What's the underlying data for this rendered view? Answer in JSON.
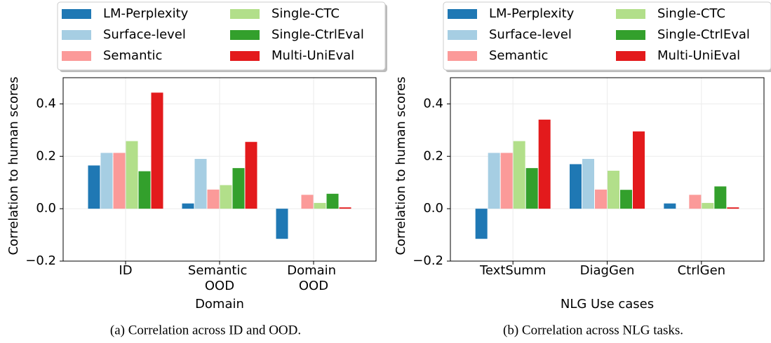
{
  "chart_data": [
    {
      "type": "bar",
      "xlabel": "Domain",
      "ylabel": "Correlation to human scores",
      "caption": "(a) Correlation across ID and OOD.",
      "categories": [
        "ID",
        "Semantic OOD",
        "Domain OOD"
      ],
      "series": [
        {
          "name": "LM-Perplexity",
          "color": "#1f78b4",
          "values": [
            0.165,
            0.02,
            -0.115
          ]
        },
        {
          "name": "Surface-level",
          "color": "#a6cee3",
          "values": [
            0.213,
            0.19,
            0
          ]
        },
        {
          "name": "Semantic",
          "color": "#fb9a99",
          "values": [
            0.213,
            0.073,
            0.053
          ]
        },
        {
          "name": "Single-CTC",
          "color": "#b2df8a",
          "values": [
            0.258,
            0.09,
            0.022
          ]
        },
        {
          "name": "Single-CtrlEval",
          "color": "#33a02c",
          "values": [
            0.143,
            0.155,
            0.057
          ]
        },
        {
          "name": "Multi-UniEval",
          "color": "#e31a1c",
          "values": [
            0.443,
            0.255,
            0.005
          ]
        }
      ],
      "ylim": [
        -0.2,
        0.5
      ],
      "yticks": [
        {
          "value": -0.2,
          "label": "−0.2"
        },
        {
          "value": 0,
          "label": "0.0"
        },
        0.2,
        0.4
      ],
      "grid": true
    },
    {
      "type": "bar",
      "xlabel": "NLG Use cases",
      "ylabel": "Correlation to human scores",
      "caption": "(b) Correlation across NLG tasks.",
      "categories": [
        "TextSumm",
        "DiagGen",
        "CtrlGen"
      ],
      "series": [
        {
          "name": "LM-Perplexity",
          "color": "#1f78b4",
          "values": [
            -0.115,
            0.17,
            0.02
          ]
        },
        {
          "name": "Surface-level",
          "color": "#a6cee3",
          "values": [
            0.213,
            0.19,
            0
          ]
        },
        {
          "name": "Semantic",
          "color": "#fb9a99",
          "values": [
            0.213,
            0.073,
            0.053
          ]
        },
        {
          "name": "Single-CTC",
          "color": "#b2df8a",
          "values": [
            0.258,
            0.145,
            0.022
          ]
        },
        {
          "name": "Single-CtrlEval",
          "color": "#33a02c",
          "values": [
            0.155,
            0.072,
            0.085
          ]
        },
        {
          "name": "Multi-UniEval",
          "color": "#e31a1c",
          "values": [
            0.34,
            0.295,
            0.005
          ]
        }
      ],
      "ylim": [
        -0.2,
        0.5
      ],
      "yticks": [
        {
          "value": -0.2,
          "label": "−0.2"
        },
        {
          "value": 0,
          "label": "0.0"
        },
        0.2,
        0.4
      ],
      "grid": true
    }
  ]
}
